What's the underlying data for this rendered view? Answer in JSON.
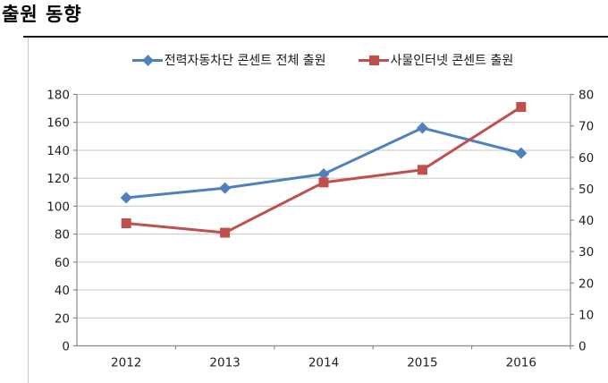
{
  "title": "출원 동향",
  "chart_data": {
    "type": "line",
    "title": "출원 동향",
    "categories": [
      "2012",
      "2013",
      "2014",
      "2015",
      "2016"
    ],
    "series": [
      {
        "name": "전력자동차단 콘센트 전체 출원",
        "axis": "left",
        "color": "#4F81BD",
        "marker": "diamond",
        "values": [
          106,
          113,
          123,
          156,
          138
        ]
      },
      {
        "name": "사물인터넷 콘센트 출원",
        "axis": "right",
        "color": "#C0504D",
        "marker": "square",
        "values": [
          39,
          36,
          52,
          56,
          76
        ]
      }
    ],
    "left_axis": {
      "min": 0,
      "max": 180,
      "step": 20,
      "ticks": [
        0,
        20,
        40,
        60,
        80,
        100,
        120,
        140,
        160,
        180
      ]
    },
    "right_axis": {
      "min": 0,
      "max": 80,
      "step": 10,
      "ticks": [
        0,
        10,
        20,
        30,
        40,
        50,
        60,
        70,
        80
      ]
    },
    "legend_position": "top",
    "grid": true,
    "colors": {
      "gridline": "#c6c6c6",
      "axis_line": "#898989",
      "label": "#1f1f1f",
      "frame_border": "#c9c9c9",
      "title_rule": "#1a1a1a"
    }
  }
}
